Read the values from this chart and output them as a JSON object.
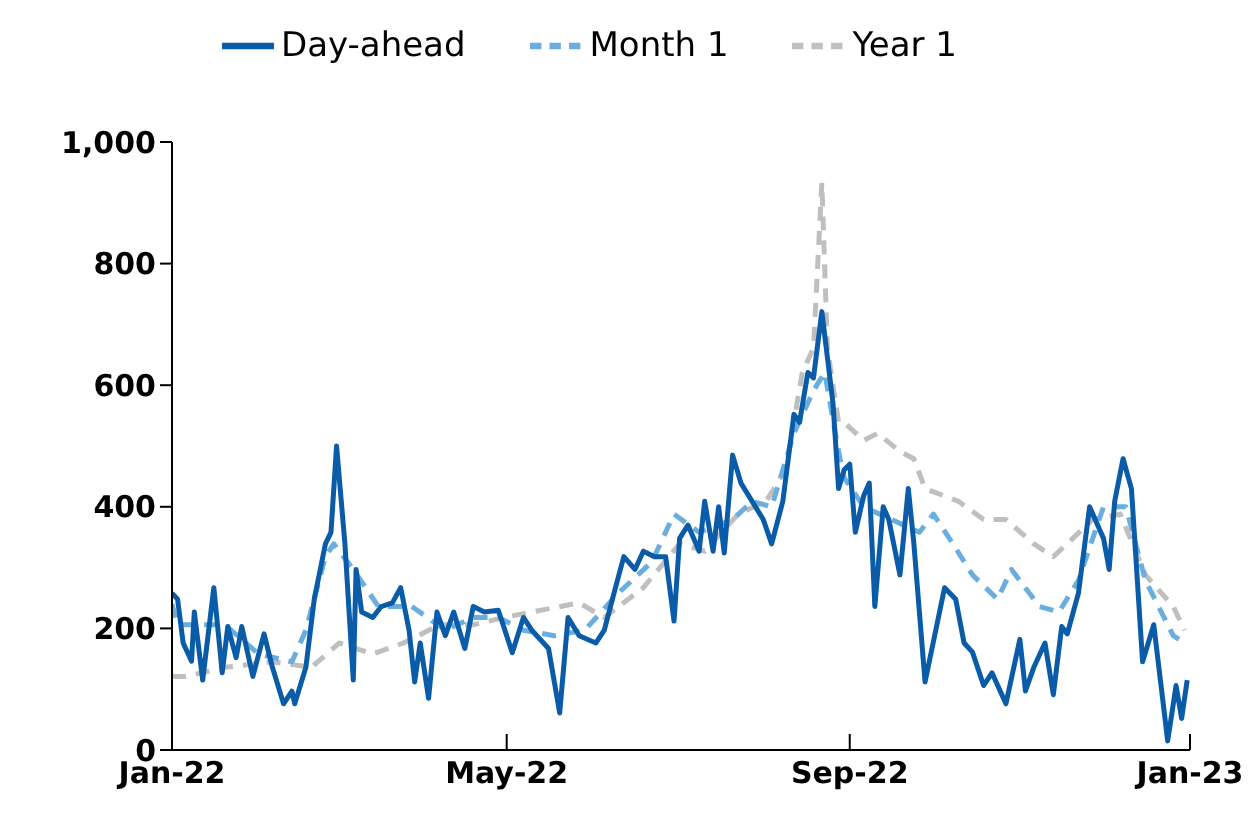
{
  "chart_data": {
    "type": "line",
    "xlim": [
      "2022-01-01",
      "2023-01-01"
    ],
    "xticks": [
      {
        "value": "2022-01-01",
        "label": "Jan-22"
      },
      {
        "value": "2022-05-01",
        "label": "May-22"
      },
      {
        "value": "2022-09-01",
        "label": "Sep-22"
      },
      {
        "value": "2023-01-01",
        "label": "Jan-23"
      }
    ],
    "ylim": [
      0,
      1000
    ],
    "yticks": [
      0,
      200,
      400,
      600,
      800,
      {
        "value": 1000,
        "label": "1,000"
      }
    ],
    "grid": false,
    "legend": "top",
    "marker": "none",
    "series": [
      {
        "name": "Day-ahead",
        "color": "#0a5ca8",
        "line_style": "solid",
        "x": [
          "2022-01-01",
          "2022-01-03",
          "2022-01-05",
          "2022-01-08",
          "2022-01-09",
          "2022-01-12",
          "2022-01-16",
          "2022-01-19",
          "2022-01-21",
          "2022-01-24",
          "2022-01-26",
          "2022-01-30",
          "2022-02-03",
          "2022-02-06",
          "2022-02-10",
          "2022-02-13",
          "2022-02-14",
          "2022-02-18",
          "2022-02-21",
          "2022-02-25",
          "2022-02-27",
          "2022-03-01",
          "2022-03-04",
          "2022-03-07",
          "2022-03-08",
          "2022-03-10",
          "2022-03-14",
          "2022-03-17",
          "2022-03-21",
          "2022-03-24",
          "2022-03-27",
          "2022-03-29",
          "2022-03-31",
          "2022-04-03",
          "2022-04-06",
          "2022-04-09",
          "2022-04-12",
          "2022-04-16",
          "2022-04-19",
          "2022-04-23",
          "2022-04-28",
          "2022-05-03",
          "2022-05-07",
          "2022-05-10",
          "2022-05-16",
          "2022-05-20",
          "2022-05-23",
          "2022-05-27",
          "2022-06-02",
          "2022-06-05",
          "2022-06-09",
          "2022-06-12",
          "2022-06-16",
          "2022-06-19",
          "2022-06-23",
          "2022-06-27",
          "2022-06-30",
          "2022-07-02",
          "2022-07-05",
          "2022-07-09",
          "2022-07-11",
          "2022-07-14",
          "2022-07-16",
          "2022-07-18",
          "2022-07-21",
          "2022-07-24",
          "2022-07-28",
          "2022-08-01",
          "2022-08-04",
          "2022-08-08",
          "2022-08-12",
          "2022-08-14",
          "2022-08-17",
          "2022-08-19",
          "2022-08-22",
          "2022-08-26",
          "2022-08-28",
          "2022-08-30",
          "2022-09-01",
          "2022-09-03",
          "2022-09-06",
          "2022-09-08",
          "2022-09-10",
          "2022-09-13",
          "2022-09-15",
          "2022-09-19",
          "2022-09-22",
          "2022-09-24",
          "2022-09-28",
          "2022-10-05",
          "2022-10-09",
          "2022-10-12",
          "2022-10-15",
          "2022-10-19",
          "2022-10-22",
          "2022-10-27",
          "2022-11-01",
          "2022-11-03",
          "2022-11-06",
          "2022-11-10",
          "2022-11-13",
          "2022-11-16",
          "2022-11-18",
          "2022-11-22",
          "2022-11-26",
          "2022-12-01",
          "2022-12-03",
          "2022-12-05",
          "2022-12-08",
          "2022-12-11",
          "2022-12-15",
          "2022-12-19",
          "2022-12-24",
          "2022-12-27",
          "2022-12-29",
          "2022-12-31"
        ],
        "values": [
          258,
          248,
          176,
          146,
          227,
          115,
          267,
          127,
          203,
          152,
          203,
          121,
          191,
          136,
          76,
          97,
          76,
          136,
          248,
          339,
          358,
          500,
          339,
          115,
          297,
          227,
          218,
          236,
          242,
          267,
          197,
          112,
          176,
          85,
          227,
          188,
          227,
          167,
          236,
          227,
          230,
          160,
          218,
          197,
          167,
          61,
          218,
          188,
          176,
          197,
          267,
          318,
          297,
          327,
          318,
          318,
          212,
          348,
          370,
          327,
          409,
          327,
          400,
          324,
          485,
          439,
          409,
          379,
          339,
          409,
          552,
          539,
          621,
          612,
          721,
          570,
          430,
          461,
          470,
          358,
          418,
          439,
          236,
          400,
          379,
          288,
          430,
          339,
          112,
          267,
          248,
          176,
          161,
          106,
          127,
          76,
          182,
          97,
          136,
          176,
          91,
          203,
          191,
          258,
          400,
          348,
          297,
          409,
          479,
          430,
          145,
          206,
          15,
          106,
          52,
          115
        ]
      },
      {
        "name": "Month 1",
        "color": "#6aaee0",
        "line_style": "dashed",
        "x": [
          "2022-01-01",
          "2022-01-03",
          "2022-01-20",
          "2022-02-01",
          "2022-02-13",
          "2022-02-18",
          "2022-02-25",
          "2022-02-28",
          "2022-03-07",
          "2022-03-16",
          "2022-03-28",
          "2022-04-09",
          "2022-04-19",
          "2022-04-28",
          "2022-05-07",
          "2022-05-18",
          "2022-05-29",
          "2022-06-10",
          "2022-06-22",
          "2022-06-30",
          "2022-07-09",
          "2022-07-21",
          "2022-07-28",
          "2022-08-04",
          "2022-08-12",
          "2022-08-19",
          "2022-08-23",
          "2022-08-28",
          "2022-08-30",
          "2022-09-06",
          "2022-09-16",
          "2022-09-26",
          "2022-10-01",
          "2022-10-08",
          "2022-10-15",
          "2022-10-24",
          "2022-10-29",
          "2022-11-08",
          "2022-11-15",
          "2022-11-22",
          "2022-12-01",
          "2022-12-09",
          "2022-12-16",
          "2022-12-26",
          "2022-12-30"
        ],
        "values": [
          240,
          206,
          206,
          158,
          145,
          197,
          318,
          339,
          297,
          236,
          236,
          197,
          218,
          218,
          197,
          188,
          197,
          258,
          309,
          388,
          358,
          379,
          409,
          400,
          521,
          591,
          621,
          491,
          448,
          400,
          379,
          358,
          388,
          339,
          288,
          248,
          297,
          236,
          227,
          279,
          400,
          400,
          279,
          188,
          176
        ]
      },
      {
        "name": "Year 1",
        "color": "#bfbfbf",
        "line_style": "dashed",
        "x": [
          "2022-01-01",
          "2022-01-06",
          "2022-01-20",
          "2022-02-06",
          "2022-02-20",
          "2022-03-02",
          "2022-03-14",
          "2022-03-25",
          "2022-04-07",
          "2022-04-19",
          "2022-04-30",
          "2022-05-10",
          "2022-05-27",
          "2022-06-05",
          "2022-06-19",
          "2022-07-02",
          "2022-07-11",
          "2022-07-23",
          "2022-08-02",
          "2022-08-09",
          "2022-08-15",
          "2022-08-19",
          "2022-08-21",
          "2022-08-22",
          "2022-08-24",
          "2022-08-28",
          "2022-08-30",
          "2022-09-06",
          "2022-09-11",
          "2022-09-19",
          "2022-09-24",
          "2022-09-28",
          "2022-10-10",
          "2022-10-19",
          "2022-10-27",
          "2022-11-06",
          "2022-11-13",
          "2022-11-20",
          "2022-11-27",
          "2022-12-07",
          "2022-12-16",
          "2022-12-26",
          "2022-12-30"
        ],
        "values": [
          121,
          121,
          136,
          145,
          136,
          176,
          158,
          176,
          206,
          206,
          218,
          227,
          242,
          218,
          267,
          339,
          327,
          388,
          409,
          461,
          621,
          661,
          842,
          933,
          661,
          539,
          539,
          509,
          521,
          491,
          479,
          430,
          409,
          379,
          379,
          339,
          318,
          348,
          379,
          388,
          288,
          236,
          197
        ]
      }
    ]
  }
}
